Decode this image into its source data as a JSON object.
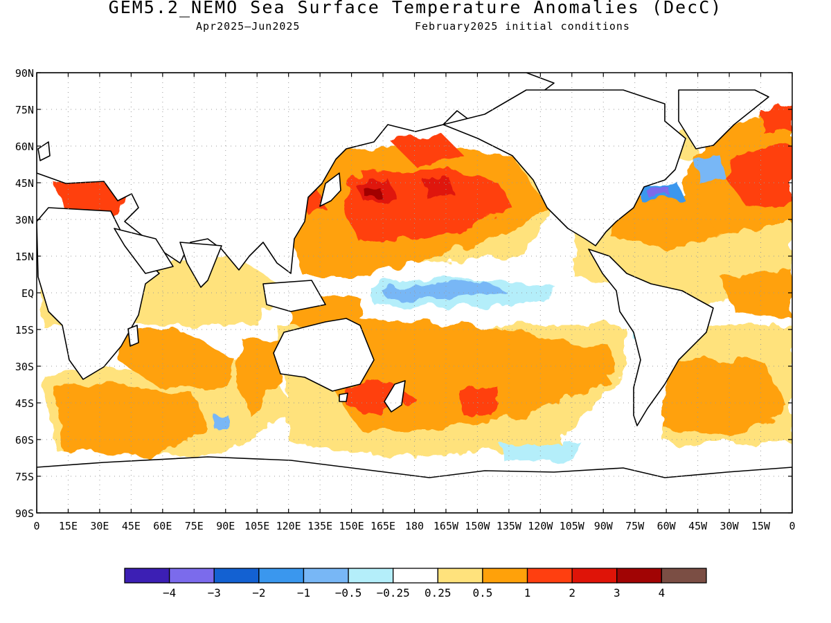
{
  "title": "GEM5.2_NEMO Sea Surface Temperature Anomalies (DecC)",
  "subtitle_left": "Apr2025–Jun2025",
  "subtitle_right": "February2025 initial conditions",
  "lat_labels": [
    "90N",
    "75N",
    "60N",
    "45N",
    "30N",
    "15N",
    "EQ",
    "15S",
    "30S",
    "45S",
    "60S",
    "75S",
    "90S"
  ],
  "lon_labels": [
    "0",
    "15E",
    "30E",
    "45E",
    "60E",
    "75E",
    "90E",
    "105E",
    "120E",
    "135E",
    "150E",
    "165E",
    "180",
    "165W",
    "150W",
    "135W",
    "120W",
    "105W",
    "90W",
    "75W",
    "60W",
    "45W",
    "30W",
    "15W",
    "0"
  ],
  "colorbar": {
    "colors": [
      "#3c1fb4",
      "#7b6bec",
      "#1361d2",
      "#3a97ee",
      "#78b7f6",
      "#b4eefa",
      "#ffffff",
      "#ffe27c",
      "#ffa10a",
      "#ff3f10",
      "#df1408",
      "#a10404",
      "#7b4e44"
    ],
    "labels": [
      "−4",
      "−3",
      "−2",
      "−1",
      "−0.5",
      "−0.25",
      "0.25",
      "0.5",
      "1",
      "2",
      "3",
      "4"
    ]
  },
  "chart_data": {
    "type": "heatmap",
    "title": "GEM5.2_NEMO Sea Surface Temperature Anomalies (DecC)",
    "period": "Apr2025–Jun2025",
    "initial_conditions": "February2025 initial conditions",
    "units": "DecC",
    "x_range": [
      0,
      360
    ],
    "y_range": [
      -90,
      90
    ],
    "contour_levels": [
      -4,
      -3,
      -2,
      -1,
      -0.5,
      -0.25,
      0.25,
      0.5,
      1,
      2,
      3,
      4
    ]
  }
}
